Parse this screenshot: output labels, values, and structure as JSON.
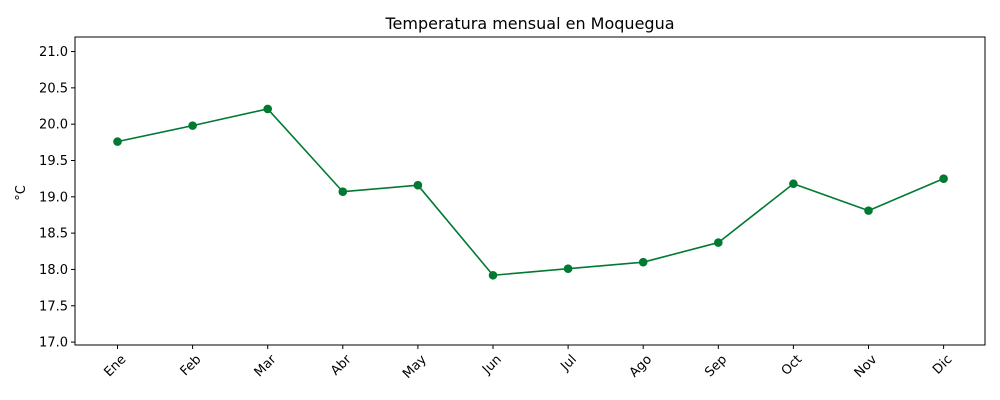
{
  "chart_data": {
    "type": "line",
    "title": "Temperatura mensual en Moquegua",
    "xlabel": "",
    "ylabel": "°C",
    "categories": [
      "Ene",
      "Feb",
      "Mar",
      "Abr",
      "May",
      "Jun",
      "Jul",
      "Ago",
      "Sep",
      "Oct",
      "Nov",
      "Dic"
    ],
    "series": [
      {
        "values": [
          19.76,
          19.98,
          20.21,
          19.07,
          19.16,
          17.92,
          18.01,
          18.1,
          18.37,
          19.18,
          18.81,
          19.25
        ]
      }
    ],
    "ylim": [
      16.96,
      21.2
    ],
    "yticks": [
      "17.0",
      "17.5",
      "18.0",
      "18.5",
      "19.0",
      "19.5",
      "20.0",
      "20.5",
      "21.0"
    ],
    "grid": false,
    "line_color": "#007a33"
  }
}
